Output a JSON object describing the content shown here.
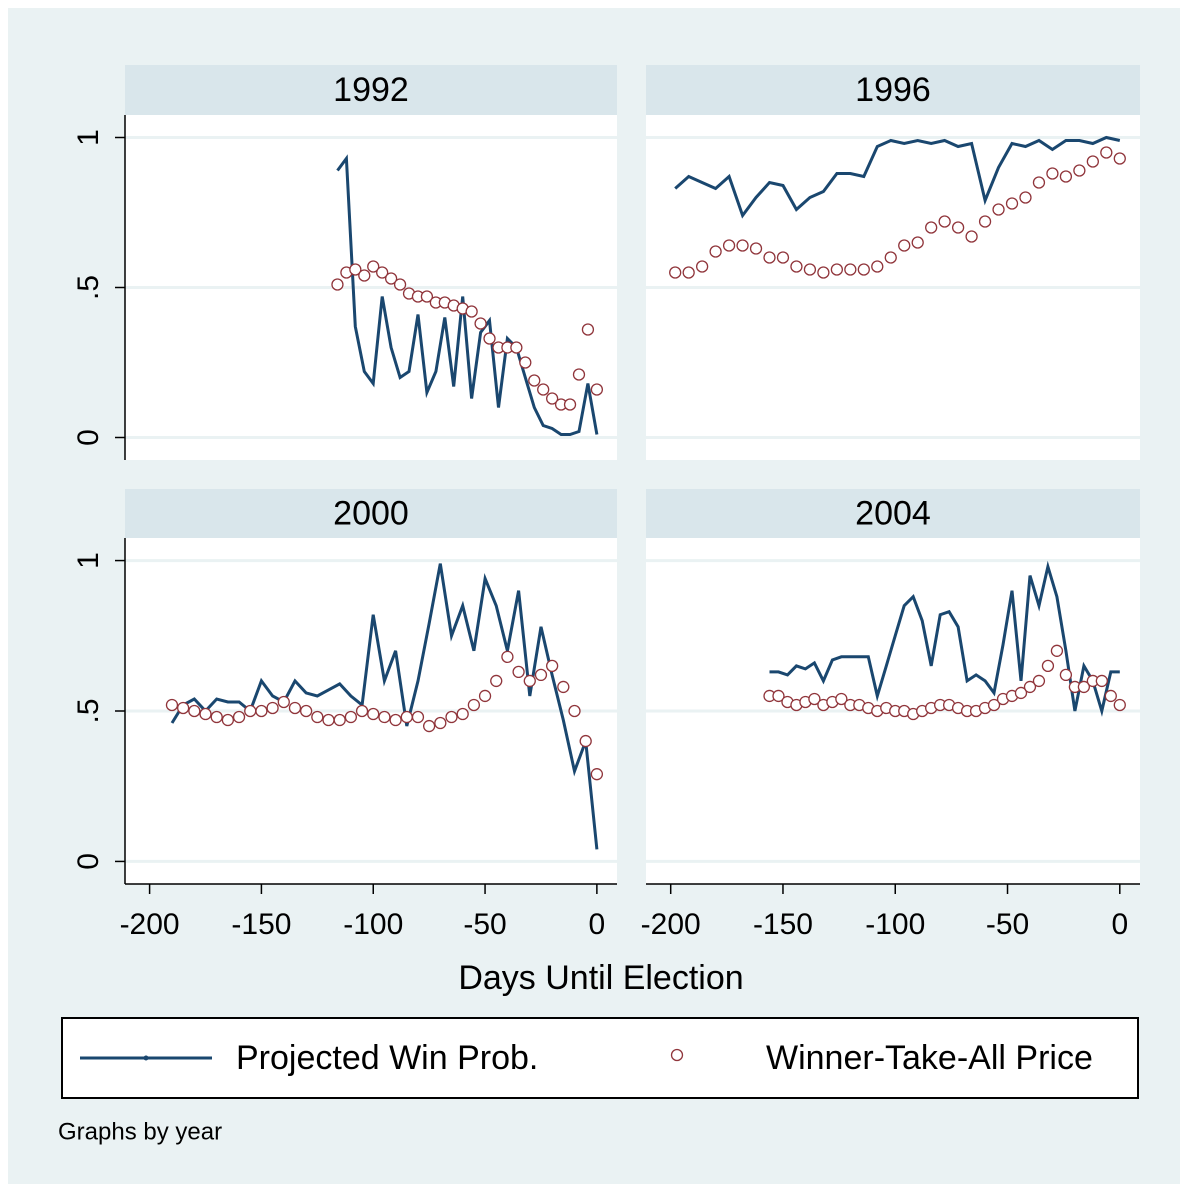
{
  "chart_data": [
    {
      "type": "line",
      "title": "1992",
      "x": [
        -116,
        -112,
        -108,
        -104,
        -100,
        -96,
        -92,
        -88,
        -84,
        -80,
        -76,
        -72,
        -68,
        -64,
        -60,
        -56,
        -52,
        -48,
        -44,
        -40,
        -36,
        -32,
        -28,
        -24,
        -20,
        -16,
        -12,
        -8,
        -4,
        0
      ],
      "series": [
        {
          "name": "Projected Win Prob.",
          "color": "#1a476f",
          "values": [
            0.89,
            0.93,
            0.37,
            0.22,
            0.18,
            0.47,
            0.3,
            0.2,
            0.22,
            0.41,
            0.15,
            0.22,
            0.4,
            0.17,
            0.47,
            0.13,
            0.35,
            0.39,
            0.1,
            0.33,
            0.3,
            0.2,
            0.1,
            0.04,
            0.03,
            0.01,
            0.01,
            0.02,
            0.18,
            0.01
          ]
        },
        {
          "name": "Winner-Take-All Price",
          "color": "#90353b",
          "values": [
            0.51,
            0.55,
            0.56,
            0.54,
            0.57,
            0.55,
            0.53,
            0.51,
            0.48,
            0.47,
            0.47,
            0.45,
            0.45,
            0.44,
            0.43,
            0.42,
            0.38,
            0.33,
            0.3,
            0.3,
            0.3,
            0.25,
            0.19,
            0.16,
            0.13,
            0.11,
            0.11,
            0.21,
            0.36,
            0.16
          ]
        }
      ],
      "xlim": [
        -211,
        9
      ],
      "ylim": [
        -0.075,
        1.075
      ],
      "yticks": [
        0,
        {
          "value": 0.5,
          "label": ".5"
        },
        1
      ]
    },
    {
      "type": "line",
      "title": "1996",
      "x": [
        -198,
        -192,
        -186,
        -180,
        -174,
        -168,
        -162,
        -156,
        -150,
        -144,
        -138,
        -132,
        -126,
        -120,
        -114,
        -108,
        -102,
        -96,
        -90,
        -84,
        -78,
        -72,
        -66,
        -60,
        -54,
        -48,
        -42,
        -36,
        -30,
        -24,
        -18,
        -12,
        -6,
        0
      ],
      "series": [
        {
          "name": "Projected Win Prob.",
          "color": "#1a476f",
          "values": [
            0.83,
            0.87,
            0.85,
            0.83,
            0.87,
            0.74,
            0.8,
            0.85,
            0.84,
            0.76,
            0.8,
            0.82,
            0.88,
            0.88,
            0.87,
            0.97,
            0.99,
            0.98,
            0.99,
            0.98,
            0.99,
            0.97,
            0.98,
            0.79,
            0.9,
            0.98,
            0.97,
            0.99,
            0.96,
            0.99,
            0.99,
            0.98,
            1.0,
            0.99
          ]
        },
        {
          "name": "Winner-Take-All Price",
          "color": "#90353b",
          "values": [
            0.55,
            0.55,
            0.57,
            0.62,
            0.64,
            0.64,
            0.63,
            0.6,
            0.6,
            0.57,
            0.56,
            0.55,
            0.56,
            0.56,
            0.56,
            0.57,
            0.6,
            0.64,
            0.65,
            0.7,
            0.72,
            0.7,
            0.67,
            0.72,
            0.76,
            0.78,
            0.8,
            0.85,
            0.88,
            0.87,
            0.89,
            0.92,
            0.95,
            0.93
          ]
        }
      ],
      "xlim": [
        -211,
        9
      ],
      "ylim": [
        -0.075,
        1.075
      ],
      "yticks": [
        0,
        {
          "value": 0.5,
          "label": ".5"
        },
        1
      ]
    },
    {
      "type": "line",
      "title": "2000",
      "x": [
        -190,
        -185,
        -180,
        -175,
        -170,
        -165,
        -160,
        -155,
        -150,
        -145,
        -140,
        -135,
        -130,
        -125,
        -120,
        -115,
        -110,
        -105,
        -100,
        -95,
        -90,
        -85,
        -80,
        -75,
        -70,
        -65,
        -60,
        -55,
        -50,
        -45,
        -40,
        -35,
        -30,
        -25,
        -20,
        -15,
        -10,
        -5,
        0
      ],
      "series": [
        {
          "name": "Projected Win Prob.",
          "color": "#1a476f",
          "values": [
            0.46,
            0.52,
            0.54,
            0.5,
            0.54,
            0.53,
            0.53,
            0.5,
            0.6,
            0.55,
            0.53,
            0.6,
            0.56,
            0.55,
            0.57,
            0.59,
            0.55,
            0.52,
            0.82,
            0.6,
            0.7,
            0.45,
            0.6,
            0.79,
            0.99,
            0.75,
            0.85,
            0.7,
            0.94,
            0.85,
            0.7,
            0.9,
            0.55,
            0.78,
            0.62,
            0.47,
            0.3,
            0.4,
            0.04
          ]
        },
        {
          "name": "Winner-Take-All Price",
          "color": "#90353b",
          "values": [
            0.52,
            0.51,
            0.5,
            0.49,
            0.48,
            0.47,
            0.48,
            0.5,
            0.5,
            0.51,
            0.53,
            0.51,
            0.5,
            0.48,
            0.47,
            0.47,
            0.48,
            0.5,
            0.49,
            0.48,
            0.47,
            0.48,
            0.48,
            0.45,
            0.46,
            0.48,
            0.49,
            0.52,
            0.55,
            0.6,
            0.68,
            0.63,
            0.6,
            0.62,
            0.65,
            0.58,
            0.5,
            0.4,
            0.29
          ]
        }
      ],
      "xlim": [
        -211,
        9
      ],
      "ylim": [
        -0.075,
        1.075
      ],
      "xticks": [
        -200,
        -150,
        -100,
        -50,
        0
      ],
      "yticks": [
        0,
        {
          "value": 0.5,
          "label": ".5"
        },
        1
      ]
    },
    {
      "type": "line",
      "title": "2004",
      "x": [
        -156,
        -152,
        -148,
        -144,
        -140,
        -136,
        -132,
        -128,
        -124,
        -120,
        -116,
        -112,
        -108,
        -104,
        -100,
        -96,
        -92,
        -88,
        -84,
        -80,
        -76,
        -72,
        -68,
        -64,
        -60,
        -56,
        -52,
        -48,
        -44,
        -40,
        -36,
        -32,
        -28,
        -24,
        -20,
        -16,
        -12,
        -8,
        -4,
        0
      ],
      "series": [
        {
          "name": "Projected Win Prob.",
          "color": "#1a476f",
          "values": [
            0.63,
            0.63,
            0.62,
            0.65,
            0.64,
            0.66,
            0.6,
            0.67,
            0.68,
            0.68,
            0.68,
            0.68,
            0.55,
            0.65,
            0.75,
            0.85,
            0.88,
            0.8,
            0.65,
            0.82,
            0.83,
            0.78,
            0.6,
            0.62,
            0.6,
            0.56,
            0.72,
            0.9,
            0.6,
            0.95,
            0.85,
            0.98,
            0.88,
            0.7,
            0.5,
            0.65,
            0.6,
            0.5,
            0.63,
            0.63
          ]
        },
        {
          "name": "Winner-Take-All Price",
          "color": "#90353b",
          "values": [
            0.55,
            0.55,
            0.53,
            0.52,
            0.53,
            0.54,
            0.52,
            0.53,
            0.54,
            0.52,
            0.52,
            0.51,
            0.5,
            0.51,
            0.5,
            0.5,
            0.49,
            0.5,
            0.51,
            0.52,
            0.52,
            0.51,
            0.5,
            0.5,
            0.51,
            0.52,
            0.54,
            0.55,
            0.56,
            0.58,
            0.6,
            0.65,
            0.7,
            0.62,
            0.58,
            0.58,
            0.6,
            0.6,
            0.55,
            0.52
          ]
        }
      ],
      "xlim": [
        -211,
        9
      ],
      "ylim": [
        -0.075,
        1.075
      ],
      "xticks": [
        -200,
        -150,
        -100,
        -50,
        0
      ],
      "yticks": [
        0,
        {
          "value": 0.5,
          "label": ".5"
        },
        1
      ]
    }
  ],
  "x_axis_title": "Days Until Election",
  "note": "Graphs by year"
}
